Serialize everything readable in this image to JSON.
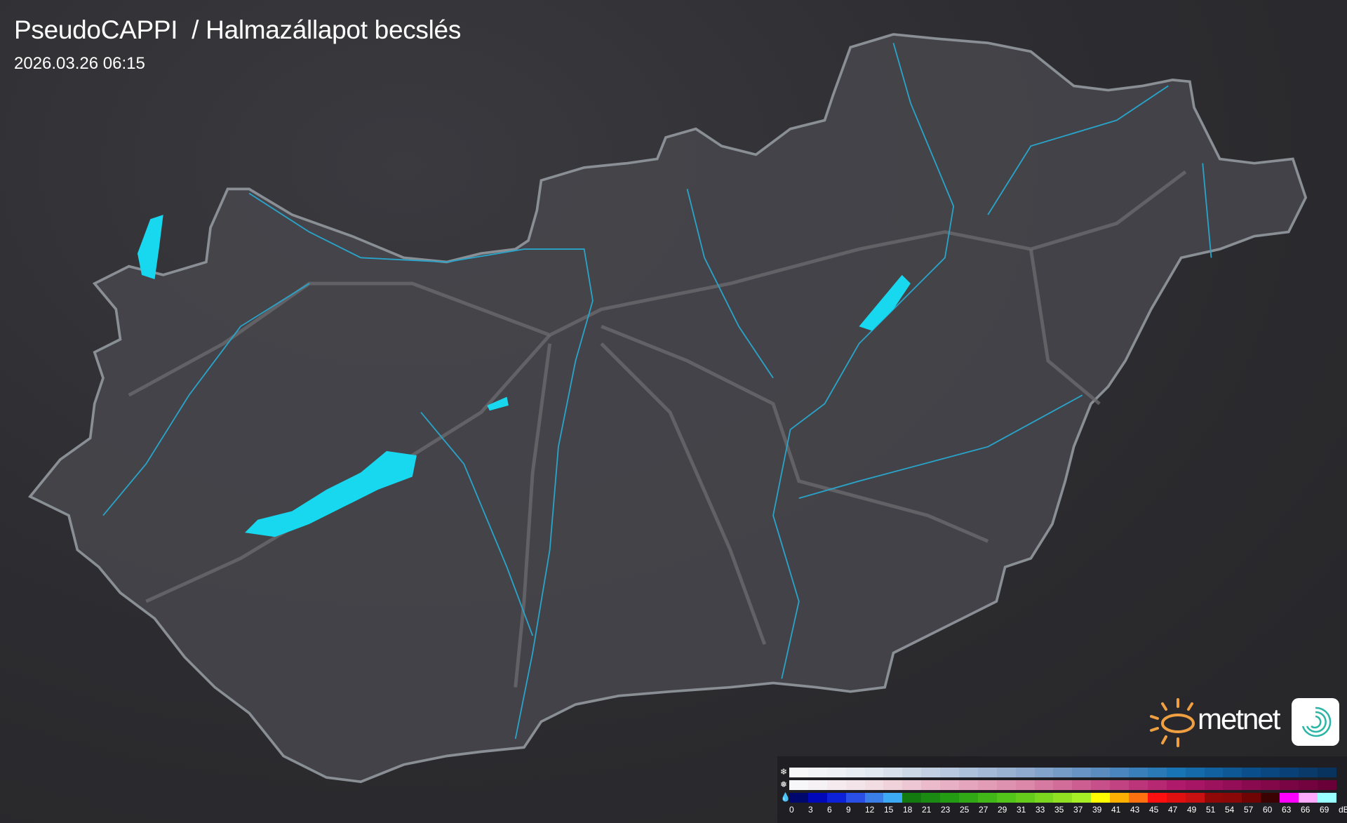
{
  "header": {
    "title": "PseudoCAPPI  / Halmazállapot becslés",
    "timestamp": "2026.03.26 06:15"
  },
  "logo": {
    "text": "metnet",
    "sun_color": "#f0a040",
    "badge_color": "#2ab5a5"
  },
  "colors": {
    "border": "#8a8f96",
    "river": "#2aa3c8",
    "road": "#6a6a6e",
    "lake": "#18d8f0",
    "land": "#46464c"
  },
  "legend": {
    "unit": "dBZ",
    "icons": [
      "snowflake-icon",
      "mixed-icon",
      "raindrop-icon"
    ],
    "labels": [
      "0",
      "3",
      "6",
      "9",
      "12",
      "15",
      "18",
      "21",
      "23",
      "25",
      "27",
      "29",
      "31",
      "33",
      "35",
      "37",
      "39",
      "41",
      "43",
      "45",
      "47",
      "49",
      "51",
      "54",
      "57",
      "60",
      "63",
      "66",
      "69"
    ],
    "snow_stops": [
      "#f7f7f9",
      "#e2e8f0",
      "#b8c8de",
      "#8faace",
      "#5a8cc0",
      "#1874b4",
      "#0a4e8c",
      "#08335f"
    ],
    "mixed_stops": [
      "#f7f7f9",
      "#f2dde3",
      "#e8b0c4",
      "#dc88a8",
      "#c8508a",
      "#b01a6a",
      "#8a0a50",
      "#6a0038"
    ],
    "rain": [
      "#00086e",
      "#0008b8",
      "#0d22d8",
      "#2a4fe6",
      "#3a7ee8",
      "#3daaf5",
      "#137a10",
      "#1a8a12",
      "#239c14",
      "#31a816",
      "#42b818",
      "#52c41a",
      "#66cc1c",
      "#7ad61e",
      "#92e022",
      "#a8ee26",
      "#ffff00",
      "#ffb000",
      "#ff7010",
      "#ff1010",
      "#e01010",
      "#c81010",
      "#900808",
      "#8a0808",
      "#700404",
      "#3a0202",
      "#ff00ff",
      "#ffaaff",
      "#99ffff"
    ]
  }
}
